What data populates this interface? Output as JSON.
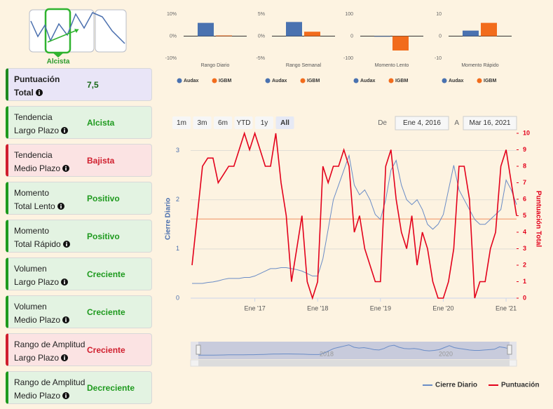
{
  "logo": {
    "label": "Alcista"
  },
  "cards": [
    {
      "label": [
        "Puntuación",
        "Total"
      ],
      "value": "7,5",
      "color": "#1a6a1a",
      "border": "#1e8a1e",
      "background": "#e9e5f7"
    },
    {
      "label": [
        "Tendencia",
        "Largo Plazo"
      ],
      "value": "Alcista",
      "color": "#1e9a1e",
      "border": "#1e9a1e",
      "background": "#e3f3e2"
    },
    {
      "label": [
        "Tendencia",
        "Medio Plazo"
      ],
      "value": "Bajista",
      "color": "#d01f2e",
      "border": "#d01f2e",
      "background": "#fbe3e3"
    },
    {
      "label": [
        "Momento",
        "Total Lento"
      ],
      "value": "Positivo",
      "color": "#1e9a1e",
      "border": "#1e9a1e",
      "background": "#e3f3e2"
    },
    {
      "label": [
        "Momento",
        "Total Rápido"
      ],
      "value": "Positivo",
      "color": "#1e9a1e",
      "border": "#1e9a1e",
      "background": "#e3f3e2"
    },
    {
      "label": [
        "Volumen",
        "Largo Plazo"
      ],
      "value": "Creciente",
      "color": "#1e9a1e",
      "border": "#1e9a1e",
      "background": "#e3f3e2"
    },
    {
      "label": [
        "Volumen",
        "Medio Plazo"
      ],
      "value": "Creciente",
      "color": "#1e9a1e",
      "border": "#1e9a1e",
      "background": "#e3f3e2"
    },
    {
      "label": [
        "Rango de Amplitud",
        "Largo Plazo"
      ],
      "value": "Creciente",
      "color": "#d01f2e",
      "border": "#d01f2e",
      "background": "#fbe3e3"
    },
    {
      "label": [
        "Rango de Amplitud",
        "Medio Plazo"
      ],
      "value": "Decreciente",
      "color": "#1e9a1e",
      "border": "#1e9a1e",
      "background": "#e3f3e2"
    }
  ],
  "chart_data": [
    {
      "type": "bar",
      "x_label": "Rango Diario",
      "ylim": [
        -10,
        10
      ],
      "yticks": [
        {
          "value": 10,
          "label": "10%"
        },
        {
          "value": 0,
          "label": "0%"
        },
        {
          "value": -10,
          "label": "-10%"
        }
      ],
      "series": [
        {
          "name": "Audax",
          "color": "#4a72b0",
          "values": [
            6
          ]
        },
        {
          "name": "IGBM",
          "color": "#f26c1c",
          "values": [
            0.3
          ]
        }
      ]
    },
    {
      "type": "bar",
      "x_label": "Rango Semanal",
      "ylim": [
        -5,
        5
      ],
      "yticks": [
        {
          "value": 5,
          "label": "5%"
        },
        {
          "value": 0,
          "label": "0%"
        },
        {
          "value": -5,
          "label": "-5%"
        }
      ],
      "series": [
        {
          "name": "Audax",
          "color": "#4a72b0",
          "values": [
            3.2
          ]
        },
        {
          "name": "IGBM",
          "color": "#f26c1c",
          "values": [
            1
          ]
        }
      ]
    },
    {
      "type": "bar",
      "x_label": "Momento Lento",
      "ylim": [
        -100,
        100
      ],
      "yticks": [
        100,
        0,
        -100
      ],
      "series": [
        {
          "name": "Audax",
          "color": "#4a72b0",
          "values": [
            0
          ]
        },
        {
          "name": "IGBM",
          "color": "#f26c1c",
          "values": [
            -65
          ]
        }
      ]
    },
    {
      "type": "bar",
      "x_label": "Momento Rápido",
      "ylim": [
        -10,
        10
      ],
      "yticks": [
        10,
        0,
        -10
      ],
      "series": [
        {
          "name": "Audax",
          "color": "#4a72b0",
          "values": [
            2.5
          ]
        },
        {
          "name": "IGBM",
          "color": "#f26c1c",
          "values": [
            6
          ]
        }
      ]
    },
    {
      "type": "line",
      "range_buttons": [
        "1m",
        "3m",
        "6m",
        "YTD",
        "1y",
        "All"
      ],
      "selected_button": 5,
      "from_label": "De",
      "from_date": "Ene 4, 2016",
      "to_label": "A",
      "to_date": "Mar 16, 2021",
      "y_label": "Cierre Diario",
      "y2_label": "Puntuación Total",
      "x": [
        "2016-01",
        "2016-02",
        "2016-03",
        "2016-04",
        "2016-05",
        "2016-06",
        "2016-07",
        "2016-08",
        "2016-09",
        "2016-10",
        "2016-11",
        "2016-12",
        "2017-01",
        "2017-02",
        "2017-03",
        "2017-04",
        "2017-05",
        "2017-06",
        "2017-07",
        "2017-08",
        "2017-09",
        "2017-10",
        "2017-11",
        "2017-12",
        "2018-01",
        "2018-02",
        "2018-03",
        "2018-04",
        "2018-05",
        "2018-06",
        "2018-07",
        "2018-08",
        "2018-09",
        "2018-10",
        "2018-11",
        "2018-12",
        "2019-01",
        "2019-02",
        "2019-03",
        "2019-04",
        "2019-05",
        "2019-06",
        "2019-07",
        "2019-08",
        "2019-09",
        "2019-10",
        "2019-11",
        "2019-12",
        "2020-01",
        "2020-02",
        "2020-03",
        "2020-04",
        "2020-05",
        "2020-06",
        "2020-07",
        "2020-08",
        "2020-09",
        "2020-10",
        "2020-11",
        "2020-12",
        "2021-01",
        "2021-02",
        "2021-03"
      ],
      "xlim": [
        "2016-01",
        "2021-03"
      ],
      "xticks": [
        {
          "value": "2017-01",
          "label": "Ene '17"
        },
        {
          "value": "2018-01",
          "label": "Ene '18"
        },
        {
          "value": "2019-01",
          "label": "Ene '19"
        },
        {
          "value": "2020-01",
          "label": "Ene '20"
        },
        {
          "value": "2021-01",
          "label": "Ene '21"
        }
      ],
      "ylim": [
        0,
        3.35
      ],
      "yticks": [
        0,
        1,
        2,
        3
      ],
      "y2lim": [
        0,
        10
      ],
      "y2ticks": [
        0,
        1,
        2,
        3,
        4,
        5,
        6,
        7,
        8,
        9,
        10
      ],
      "grid": true,
      "y2_reference": 4.8,
      "reference_color": "#f4b08a",
      "series": [
        {
          "name": "Cierre Diario",
          "color": "#6a8cc6",
          "values": [
            0.3,
            0.3,
            0.3,
            0.32,
            0.33,
            0.35,
            0.38,
            0.4,
            0.4,
            0.4,
            0.42,
            0.42,
            0.45,
            0.5,
            0.55,
            0.6,
            0.6,
            0.62,
            0.62,
            0.6,
            0.58,
            0.55,
            0.5,
            0.45,
            0.45,
            0.8,
            1.4,
            2.0,
            2.3,
            2.6,
            2.9,
            2.3,
            2.1,
            2.2,
            2.0,
            1.7,
            1.6,
            2.0,
            2.6,
            2.8,
            2.3,
            2.0,
            1.9,
            2.0,
            1.8,
            1.5,
            1.4,
            1.5,
            1.7,
            2.2,
            2.7,
            2.2,
            2.0,
            1.8,
            1.6,
            1.5,
            1.5,
            1.6,
            1.7,
            1.8,
            2.4,
            2.2,
            1.9
          ]
        },
        {
          "name": "Puntuación",
          "color": "#e3001b",
          "axis": "y2",
          "values": [
            2,
            5,
            8,
            8.5,
            8.5,
            7,
            7.5,
            8,
            8,
            9,
            10,
            9,
            10,
            9,
            8,
            8,
            10,
            7,
            5,
            1,
            3,
            5,
            1,
            0,
            1,
            8,
            7,
            8,
            8,
            9,
            8,
            4,
            5,
            3,
            2,
            1,
            1,
            8,
            9,
            6,
            4,
            3,
            5,
            2,
            4,
            3,
            1,
            0,
            0,
            1,
            3,
            8,
            8,
            6,
            0,
            1,
            1,
            3,
            4,
            8,
            9,
            7,
            5
          ]
        }
      ],
      "navigator_labels": [
        "2018",
        "2020"
      ]
    }
  ]
}
